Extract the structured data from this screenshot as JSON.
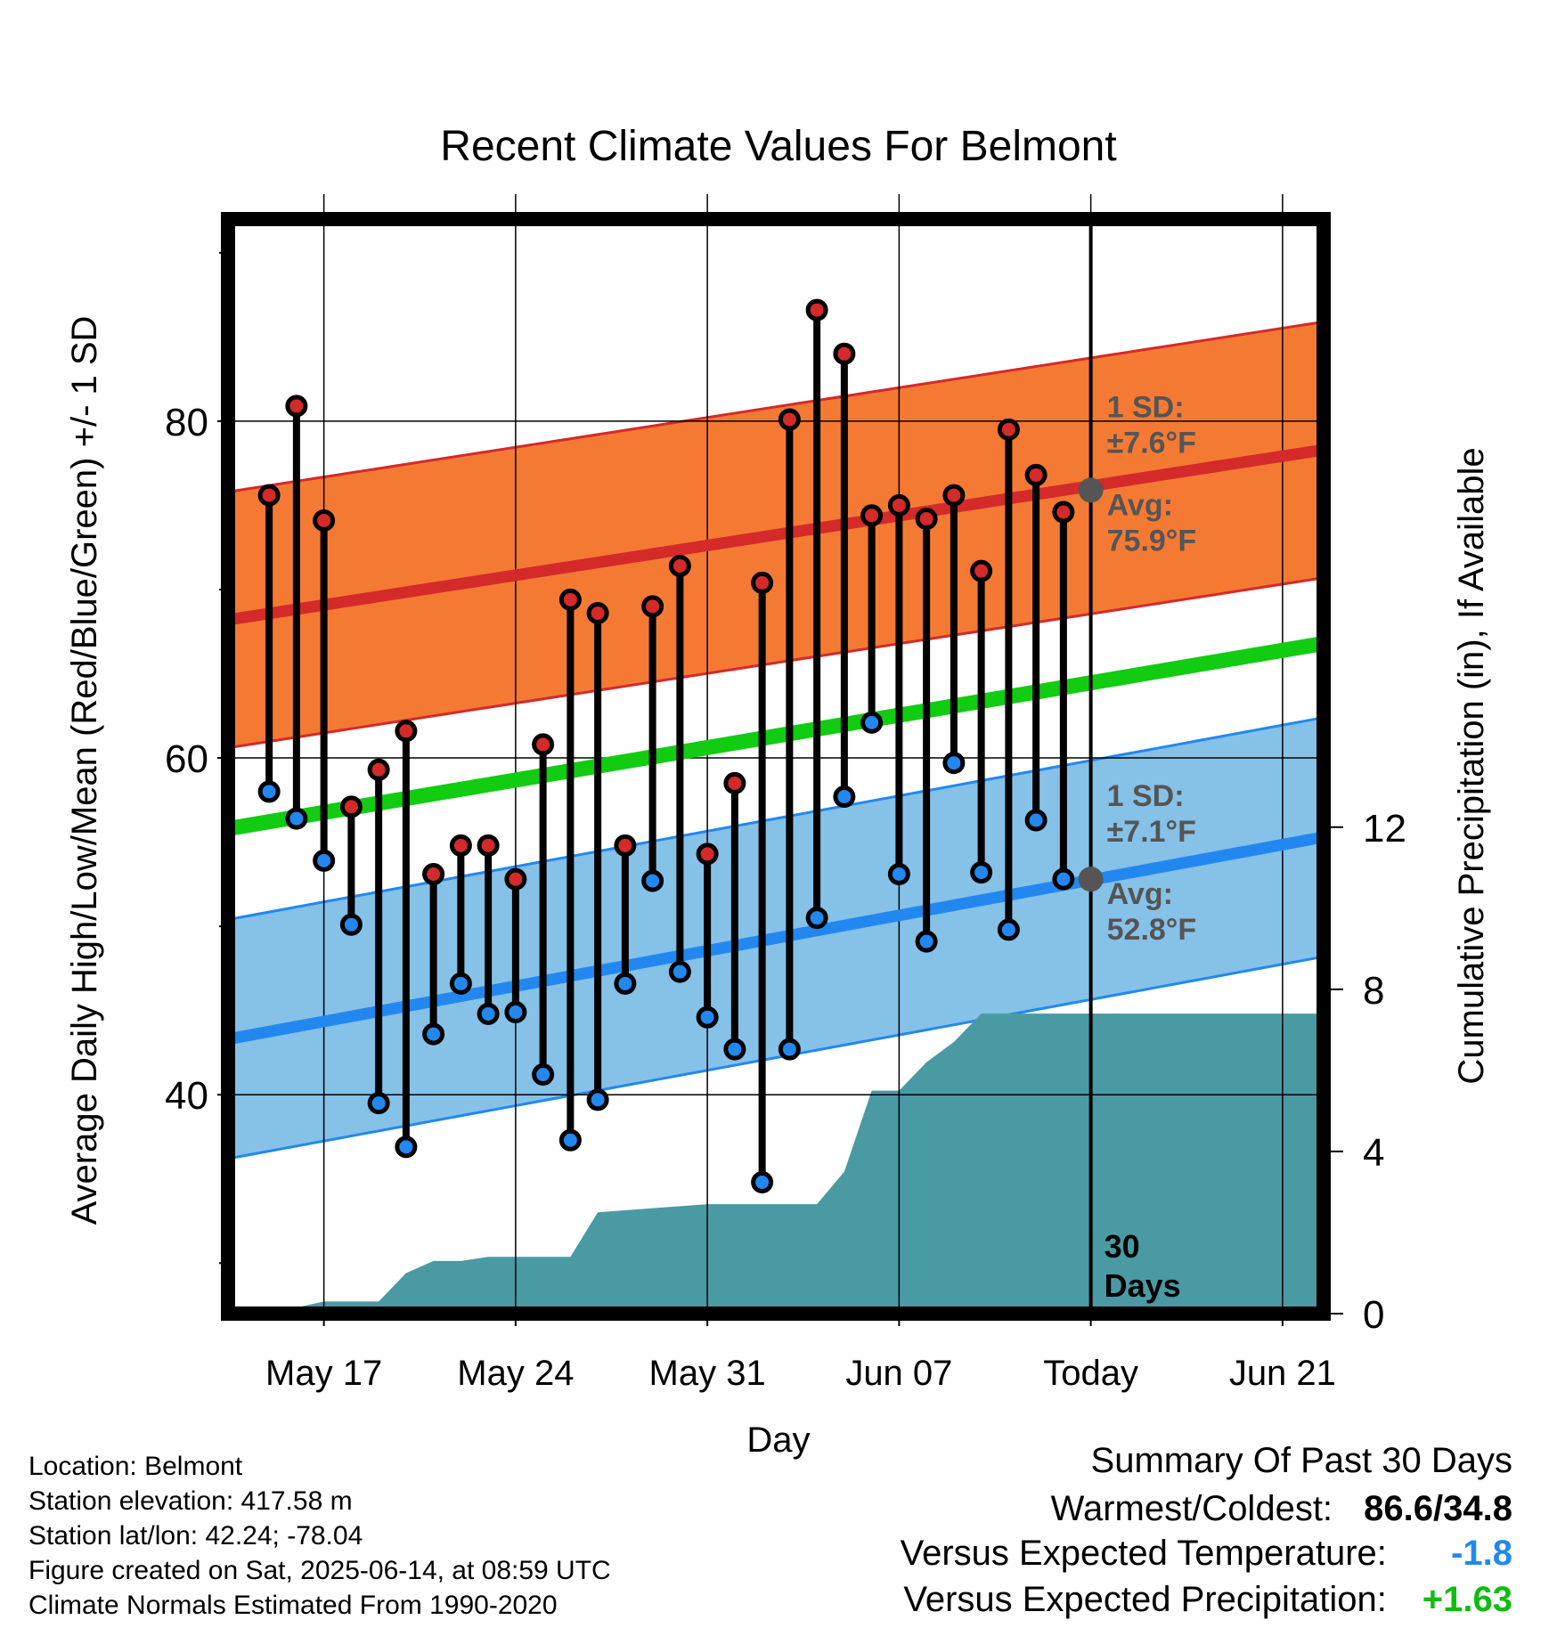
{
  "chart_data": {
    "type": "line",
    "title": "Recent Climate Values For Belmont",
    "xlabel": "Day",
    "ylabel": "Average Daily High/Low/Mean (Red/Blue/Green) +/- 1 SD",
    "y2label": "Cumulative Precipitation (in), If Available",
    "ylim": [
      27,
      92
    ],
    "y2lim": [
      0,
      27
    ],
    "xlim": [
      -3.5,
      36.5
    ],
    "x_ticks": [
      {
        "day": 0,
        "label": "May 17"
      },
      {
        "day": 7,
        "label": "May 24"
      },
      {
        "day": 14,
        "label": "May 31"
      },
      {
        "day": 21,
        "label": "Jun 07"
      },
      {
        "day": 28,
        "label": "Today"
      },
      {
        "day": 35,
        "label": "Jun 21"
      }
    ],
    "y_ticks": [
      40,
      60,
      80
    ],
    "y2_ticks": [
      0,
      4,
      8,
      12
    ],
    "grid": true,
    "days": [
      -2,
      -1,
      0,
      1,
      2,
      3,
      4,
      5,
      6,
      7,
      8,
      9,
      10,
      11,
      12,
      13,
      14,
      15,
      16,
      17,
      18,
      19,
      20,
      21,
      22,
      23,
      24,
      25,
      26,
      27
    ],
    "daily_high": [
      75.6,
      80.9,
      74.1,
      57.1,
      59.3,
      61.6,
      53.1,
      54.8,
      54.8,
      52.8,
      60.8,
      69.4,
      68.6,
      54.8,
      69.0,
      71.4,
      54.3,
      58.5,
      70.4,
      80.1,
      86.6,
      84.0,
      74.4,
      75.0,
      74.2,
      75.6,
      71.1,
      79.5,
      76.8,
      74.6
    ],
    "daily_low": [
      58.0,
      56.4,
      53.9,
      50.1,
      39.5,
      36.9,
      43.6,
      46.6,
      44.8,
      44.9,
      41.2,
      37.3,
      39.7,
      46.6,
      52.7,
      47.3,
      44.6,
      42.7,
      34.8,
      42.7,
      50.5,
      57.7,
      62.1,
      53.1,
      49.1,
      59.7,
      53.2,
      49.8,
      56.3,
      52.8
    ],
    "normal_high": {
      "start": 68.2,
      "end": 78.3,
      "sd": "±7.6°F",
      "avg": "75.9°F"
    },
    "normal_low": {
      "start": 43.3,
      "end": 55.3,
      "sd": "±7.1°F",
      "avg": "52.8°F"
    },
    "normal_mean": {
      "start": 55.8,
      "end": 66.8
    },
    "today_high_avg": 75.9,
    "today_low_avg": 52.8,
    "precip_cumulative": [
      [
        -2,
        0
      ],
      [
        -1,
        0.15
      ],
      [
        0,
        0.3
      ],
      [
        2,
        0.3
      ],
      [
        3,
        1.0
      ],
      [
        4,
        1.3
      ],
      [
        5,
        1.3
      ],
      [
        6,
        1.4
      ],
      [
        8,
        1.4
      ],
      [
        9,
        1.4
      ],
      [
        10,
        2.5
      ],
      [
        12,
        2.6
      ],
      [
        14,
        2.7
      ],
      [
        18,
        2.7
      ],
      [
        19,
        3.5
      ],
      [
        20,
        5.5
      ],
      [
        21,
        5.5
      ],
      [
        22,
        6.2
      ],
      [
        23,
        6.7
      ],
      [
        24,
        7.4
      ],
      [
        36.5,
        7.4
      ]
    ],
    "colors": {
      "high_band": "#f47a34",
      "high_line": "#d42a2a",
      "low_band": "#86c1e8",
      "low_line": "#2288f0",
      "mean_line": "#11cc11",
      "precip": "#4a9aa4",
      "high_dot": "#d42a2a",
      "low_dot": "#2288f0"
    }
  },
  "annotations": {
    "high_sd_label": "1 SD:",
    "high_sd_value": "±7.6°F",
    "high_avg_label": "Avg:",
    "high_avg_value": "75.9°F",
    "low_sd_label": "1 SD:",
    "low_sd_value": "±7.1°F",
    "low_avg_label": "Avg:",
    "low_avg_value": "52.8°F",
    "period_number": "30",
    "period_unit": "Days"
  },
  "footer": {
    "location": "Location: Belmont",
    "elevation": "Station elevation: 417.58 m",
    "latlon": "Station lat/lon: 42.24; -78.04",
    "created": "Figure created on Sat, 2025-06-14, at 08:59 UTC",
    "normals": "Climate Normals Estimated From 1990-2020"
  },
  "summary": {
    "heading": "Summary Of Past 30 Days",
    "warm_cold_label": "Warmest/Coldest:",
    "warm_cold_value": "86.6/34.8",
    "temp_label": "Versus Expected Temperature:",
    "temp_value": "-1.8",
    "precip_label": "Versus Expected Precipitation:",
    "precip_value": "+1.63",
    "colors": {
      "temp": "#2288f0",
      "precip": "#11bb11"
    }
  }
}
